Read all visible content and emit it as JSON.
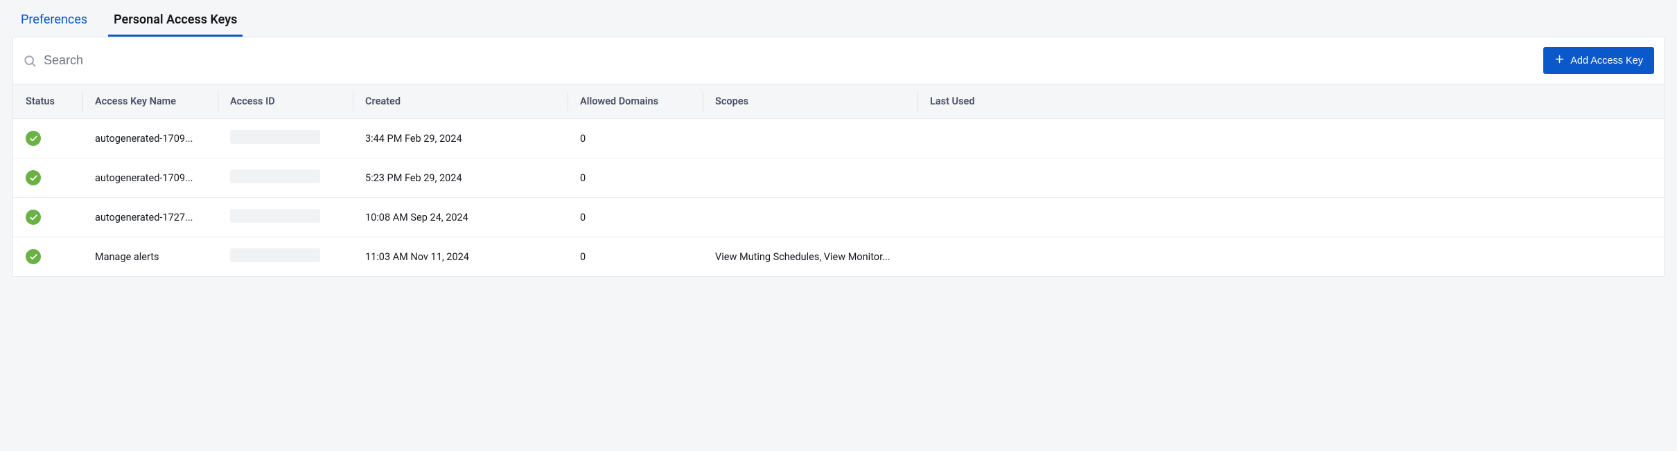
{
  "tabs": {
    "preferences": "Preferences",
    "personal_access_keys": "Personal Access Keys"
  },
  "toolbar": {
    "search_placeholder": "Search",
    "add_button": "Add Access Key"
  },
  "columns": {
    "status": "Status",
    "name": "Access Key Name",
    "id": "Access ID",
    "created": "Created",
    "domains": "Allowed Domains",
    "scopes": "Scopes",
    "last_used": "Last Used"
  },
  "rows": [
    {
      "name": "autogenerated-1709...",
      "created": "3:44 PM Feb 29, 2024",
      "domains": "0",
      "scopes": ""
    },
    {
      "name": "autogenerated-1709...",
      "created": "5:23 PM Feb 29, 2024",
      "domains": "0",
      "scopes": ""
    },
    {
      "name": "autogenerated-1727...",
      "created": "10:08 AM Sep 24, 2024",
      "domains": "0",
      "scopes": ""
    },
    {
      "name": "Manage alerts",
      "created": "11:03 AM Nov 11, 2024",
      "domains": "0",
      "scopes": "View Muting Schedules, View Monitor..."
    }
  ],
  "colors": {
    "accent": "#0a58c9",
    "status_ok": "#6bb245",
    "page_bg": "#f5f6f8",
    "header_text": "#455064"
  }
}
